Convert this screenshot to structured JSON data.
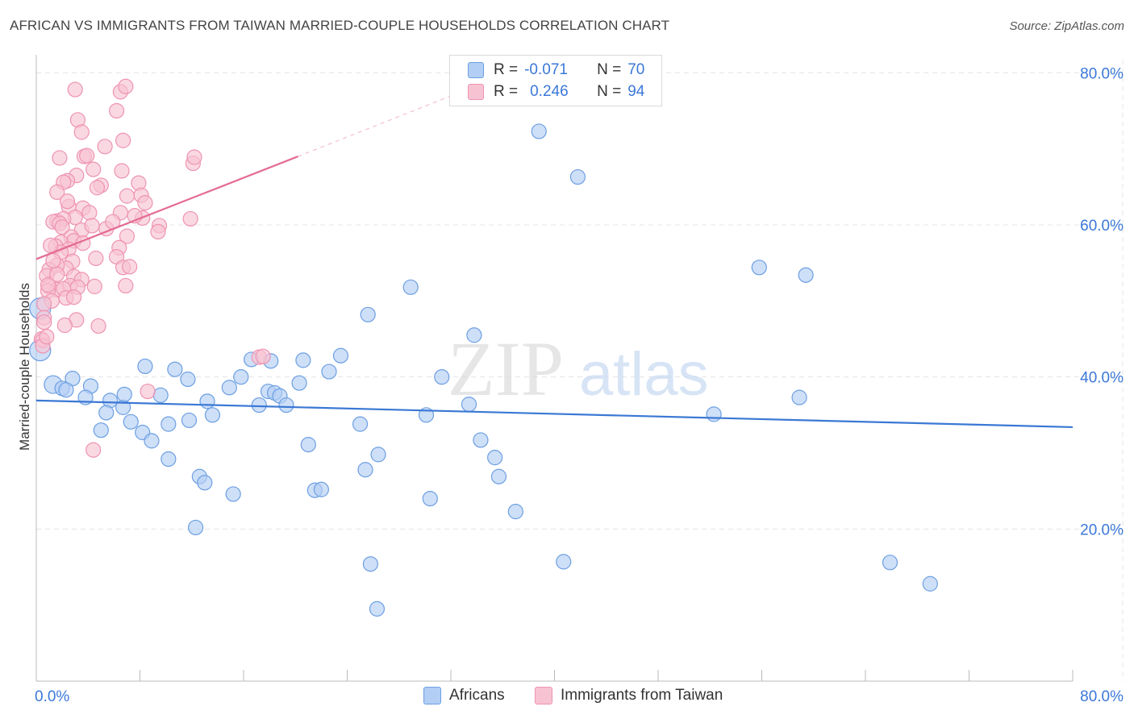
{
  "title": "AFRICAN VS IMMIGRANTS FROM TAIWAN MARRIED-COUPLE HOUSEHOLDS CORRELATION CHART",
  "source": "Source: ZipAtlas.com",
  "watermark": {
    "zip": "ZIP",
    "atlas": "atlas"
  },
  "colors": {
    "blue": "#3a78d4",
    "blue_fill": "#b3cef4",
    "blue_stroke": "#6c9fe2",
    "pink": "#e46b93",
    "pink_fill": "#f7c3d3",
    "pink_stroke": "#ee93b1",
    "axis_text": "#3b78d8",
    "grid": "#e4e4e4"
  },
  "legend_top": {
    "rows": [
      {
        "r_label": "R =",
        "r_value": "-0.071",
        "n_label": "N =",
        "n_value": "70",
        "series": "africans"
      },
      {
        "r_label": "R =",
        "r_value": "0.246",
        "n_label": "N =",
        "n_value": "94",
        "series": "taiwan"
      }
    ]
  },
  "legend_bottom": [
    {
      "label": "Africans",
      "series": "africans"
    },
    {
      "label": "Immigrants from Taiwan",
      "series": "taiwan"
    }
  ],
  "chart_data": {
    "type": "scatter",
    "title": "AFRICAN VS IMMIGRANTS FROM TAIWAN MARRIED-COUPLE HOUSEHOLDS CORRELATION CHART",
    "xlabel": "",
    "ylabel": "Married-couple Households",
    "xlim": [
      0,
      80
    ],
    "ylim": [
      0,
      83
    ],
    "x_tick_labels": [
      {
        "value": 0,
        "label": "0.0%"
      },
      {
        "value": 80,
        "label": "80.0%"
      }
    ],
    "y_tick_labels": [
      {
        "value": 20,
        "label": "20.0%"
      },
      {
        "value": 40,
        "label": "40.0%"
      },
      {
        "value": 60,
        "label": "60.0%"
      },
      {
        "value": 80,
        "label": "80.0%"
      }
    ],
    "grid": true,
    "series": [
      {
        "name": "Africans",
        "key": "africans",
        "r": -0.071,
        "n": 70,
        "trend": {
          "x0": 0,
          "y0": 36.9,
          "x1": 80,
          "y1": 33.4
        },
        "points": [
          [
            0.3,
            49
          ],
          [
            0.3,
            43.5
          ],
          [
            1.3,
            39
          ],
          [
            2.0,
            38.5
          ],
          [
            2.8,
            39.8
          ],
          [
            4.2,
            38.8
          ],
          [
            2.3,
            38.3
          ],
          [
            3.8,
            37.3
          ],
          [
            5.7,
            36.9
          ],
          [
            6.7,
            36
          ],
          [
            5.4,
            35.3
          ],
          [
            7.3,
            34.1
          ],
          [
            5.0,
            33
          ],
          [
            8.2,
            32.7
          ],
          [
            8.9,
            31.6
          ],
          [
            10.2,
            33.8
          ],
          [
            11.8,
            34.3
          ],
          [
            9.6,
            37.6
          ],
          [
            6.8,
            37.7
          ],
          [
            11.7,
            39.7
          ],
          [
            10.7,
            41
          ],
          [
            8.4,
            41.4
          ],
          [
            10.2,
            29.2
          ],
          [
            13.2,
            36.8
          ],
          [
            13.6,
            35
          ],
          [
            14.9,
            38.6
          ],
          [
            15.8,
            40
          ],
          [
            16.6,
            42.3
          ],
          [
            18.1,
            42.1
          ],
          [
            17.2,
            36.3
          ],
          [
            17.9,
            38.1
          ],
          [
            18.4,
            37.9
          ],
          [
            18.8,
            37.5
          ],
          [
            19.3,
            36.3
          ],
          [
            20.3,
            39.2
          ],
          [
            20.6,
            42.2
          ],
          [
            21.0,
            31.1
          ],
          [
            22.6,
            40.7
          ],
          [
            23.5,
            42.8
          ],
          [
            21.5,
            25.1
          ],
          [
            22.0,
            25.2
          ],
          [
            12.6,
            26.9
          ],
          [
            13.0,
            26.1
          ],
          [
            15.2,
            24.6
          ],
          [
            12.3,
            20.2
          ],
          [
            25.0,
            33.8
          ],
          [
            25.4,
            27.8
          ],
          [
            26.4,
            29.8
          ],
          [
            25.6,
            48.2
          ],
          [
            28.9,
            51.8
          ],
          [
            30.1,
            35
          ],
          [
            30.4,
            24
          ],
          [
            31.3,
            40
          ],
          [
            33.4,
            36.4
          ],
          [
            33.8,
            45.5
          ],
          [
            34.3,
            31.7
          ],
          [
            35.4,
            29.4
          ],
          [
            35.7,
            26.9
          ],
          [
            37.0,
            22.3
          ],
          [
            38.8,
            72.3
          ],
          [
            40.7,
            15.7
          ],
          [
            41.8,
            66.3
          ],
          [
            25.8,
            15.4
          ],
          [
            52.3,
            35.1
          ],
          [
            58.9,
            37.3
          ],
          [
            55.8,
            54.4
          ],
          [
            59.4,
            53.4
          ],
          [
            65.9,
            15.6
          ],
          [
            69.0,
            12.8
          ],
          [
            26.3,
            9.5
          ]
        ]
      },
      {
        "name": "Immigrants from Taiwan",
        "key": "taiwan",
        "r": 0.246,
        "n": 94,
        "trend": {
          "x0": 0,
          "y0": 55.5,
          "x1": 20.2,
          "y1": 69.0
        },
        "trend_extension": {
          "x1": 34,
          "y1": 78.3
        },
        "points": [
          [
            3.0,
            77.8
          ],
          [
            6.5,
            77.5
          ],
          [
            6.9,
            78.2
          ],
          [
            6.2,
            75
          ],
          [
            3.2,
            73.8
          ],
          [
            3.5,
            72.2
          ],
          [
            6.7,
            71.1
          ],
          [
            5.3,
            70.3
          ],
          [
            3.7,
            69
          ],
          [
            3.9,
            69.1
          ],
          [
            1.8,
            68.8
          ],
          [
            4.4,
            67.3
          ],
          [
            3.1,
            66.5
          ],
          [
            6.6,
            67.1
          ],
          [
            2.4,
            65.8
          ],
          [
            2.1,
            65.6
          ],
          [
            5.0,
            65.2
          ],
          [
            7.9,
            65.5
          ],
          [
            8.1,
            63.9
          ],
          [
            4.7,
            64.9
          ],
          [
            1.6,
            64.3
          ],
          [
            7.0,
            63.8
          ],
          [
            8.4,
            62.9
          ],
          [
            6.5,
            61.6
          ],
          [
            3.6,
            62.2
          ],
          [
            2.5,
            62.4
          ],
          [
            4.1,
            61.6
          ],
          [
            3.0,
            61
          ],
          [
            1.6,
            60.5
          ],
          [
            2.1,
            60.8
          ],
          [
            8.2,
            60.9
          ],
          [
            1.3,
            60.4
          ],
          [
            1.8,
            60.2
          ],
          [
            2.0,
            59.7
          ],
          [
            3.5,
            59.3
          ],
          [
            4.3,
            59.9
          ],
          [
            5.4,
            59.5
          ],
          [
            9.5,
            59.9
          ],
          [
            9.4,
            59.1
          ],
          [
            2.7,
            58.4
          ],
          [
            2.9,
            57.9
          ],
          [
            7.0,
            58.5
          ],
          [
            1.9,
            57.7
          ],
          [
            1.5,
            57.2
          ],
          [
            2.5,
            56.8
          ],
          [
            6.4,
            57
          ],
          [
            4.6,
            55.6
          ],
          [
            1.9,
            56.4
          ],
          [
            6.2,
            55.8
          ],
          [
            2.8,
            55.2
          ],
          [
            6.7,
            54.4
          ],
          [
            7.2,
            54.5
          ],
          [
            2.3,
            54.3
          ],
          [
            1.6,
            54.7
          ],
          [
            1.0,
            54.1
          ],
          [
            0.8,
            53.3
          ],
          [
            1.6,
            53.5
          ],
          [
            2.9,
            53.2
          ],
          [
            3.5,
            52.8
          ],
          [
            2.6,
            52
          ],
          [
            1.0,
            51.9
          ],
          [
            1.6,
            51.5
          ],
          [
            2.1,
            51.6
          ],
          [
            3.2,
            51.8
          ],
          [
            4.5,
            51.9
          ],
          [
            6.9,
            52
          ],
          [
            0.9,
            51.3
          ],
          [
            2.3,
            50.4
          ],
          [
            2.9,
            50.5
          ],
          [
            1.2,
            50
          ],
          [
            0.6,
            49.6
          ],
          [
            0.6,
            47.8
          ],
          [
            0.6,
            47.2
          ],
          [
            3.1,
            47.5
          ],
          [
            4.8,
            46.7
          ],
          [
            0.4,
            45
          ],
          [
            0.5,
            44.8
          ],
          [
            0.5,
            44.1
          ],
          [
            0.8,
            45.3
          ],
          [
            17.2,
            42.6
          ],
          [
            17.5,
            42.7
          ],
          [
            8.6,
            38.1
          ],
          [
            4.4,
            30.4
          ],
          [
            12.1,
            68.1
          ],
          [
            12.2,
            68.9
          ],
          [
            11.9,
            60.8
          ],
          [
            1.1,
            57.3
          ],
          [
            2.2,
            46.8
          ],
          [
            0.9,
            52.1
          ],
          [
            1.3,
            55.3
          ],
          [
            2.4,
            63.1
          ],
          [
            3.6,
            57.6
          ],
          [
            5.9,
            60.4
          ],
          [
            7.6,
            61.2
          ]
        ]
      }
    ]
  }
}
